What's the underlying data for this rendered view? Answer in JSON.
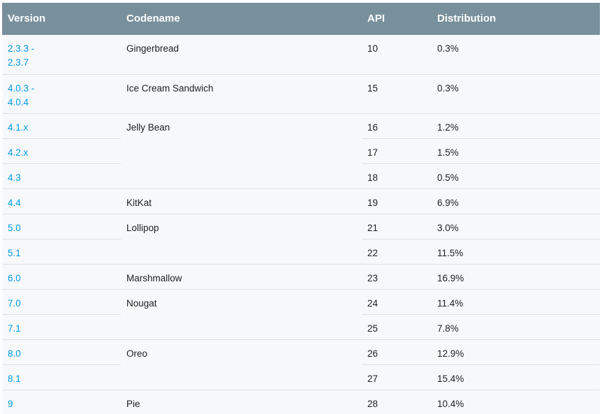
{
  "table": {
    "headers": [
      "Version",
      "Codename",
      "API",
      "Distribution"
    ],
    "rows": [
      {
        "version": "2.3.3 -\n2.3.7",
        "codename": "Gingerbread",
        "api": "10",
        "distribution": "0.3%"
      },
      {
        "version": "4.0.3 -\n4.0.4",
        "codename": "Ice Cream Sandwich",
        "api": "15",
        "distribution": "0.3%"
      },
      {
        "version": "4.1.x",
        "codename": "Jelly Bean",
        "api": "16",
        "distribution": "1.2%"
      },
      {
        "version": "4.2.x",
        "codename": "",
        "api": "17",
        "distribution": "1.5%"
      },
      {
        "version": "4.3",
        "codename": "",
        "api": "18",
        "distribution": "0.5%"
      },
      {
        "version": "4.4",
        "codename": "KitKat",
        "api": "19",
        "distribution": "6.9%"
      },
      {
        "version": "5.0",
        "codename": "Lollipop",
        "api": "21",
        "distribution": "3.0%"
      },
      {
        "version": "5.1",
        "codename": "",
        "api": "22",
        "distribution": "11.5%"
      },
      {
        "version": "6.0",
        "codename": "Marshmallow",
        "api": "23",
        "distribution": "16.9%"
      },
      {
        "version": "7.0",
        "codename": "Nougat",
        "api": "24",
        "distribution": "11.4%"
      },
      {
        "version": "7.1",
        "codename": "",
        "api": "25",
        "distribution": "7.8%"
      },
      {
        "version": "8.0",
        "codename": "Oreo",
        "api": "26",
        "distribution": "12.9%"
      },
      {
        "version": "8.1",
        "codename": "",
        "api": "27",
        "distribution": "15.4%"
      },
      {
        "version": "9",
        "codename": "Pie",
        "api": "28",
        "distribution": "10.4%"
      }
    ]
  },
  "colors": {
    "header_bg": "#78909c",
    "link": "#039be5",
    "row_bg": "#f7f8fa"
  }
}
